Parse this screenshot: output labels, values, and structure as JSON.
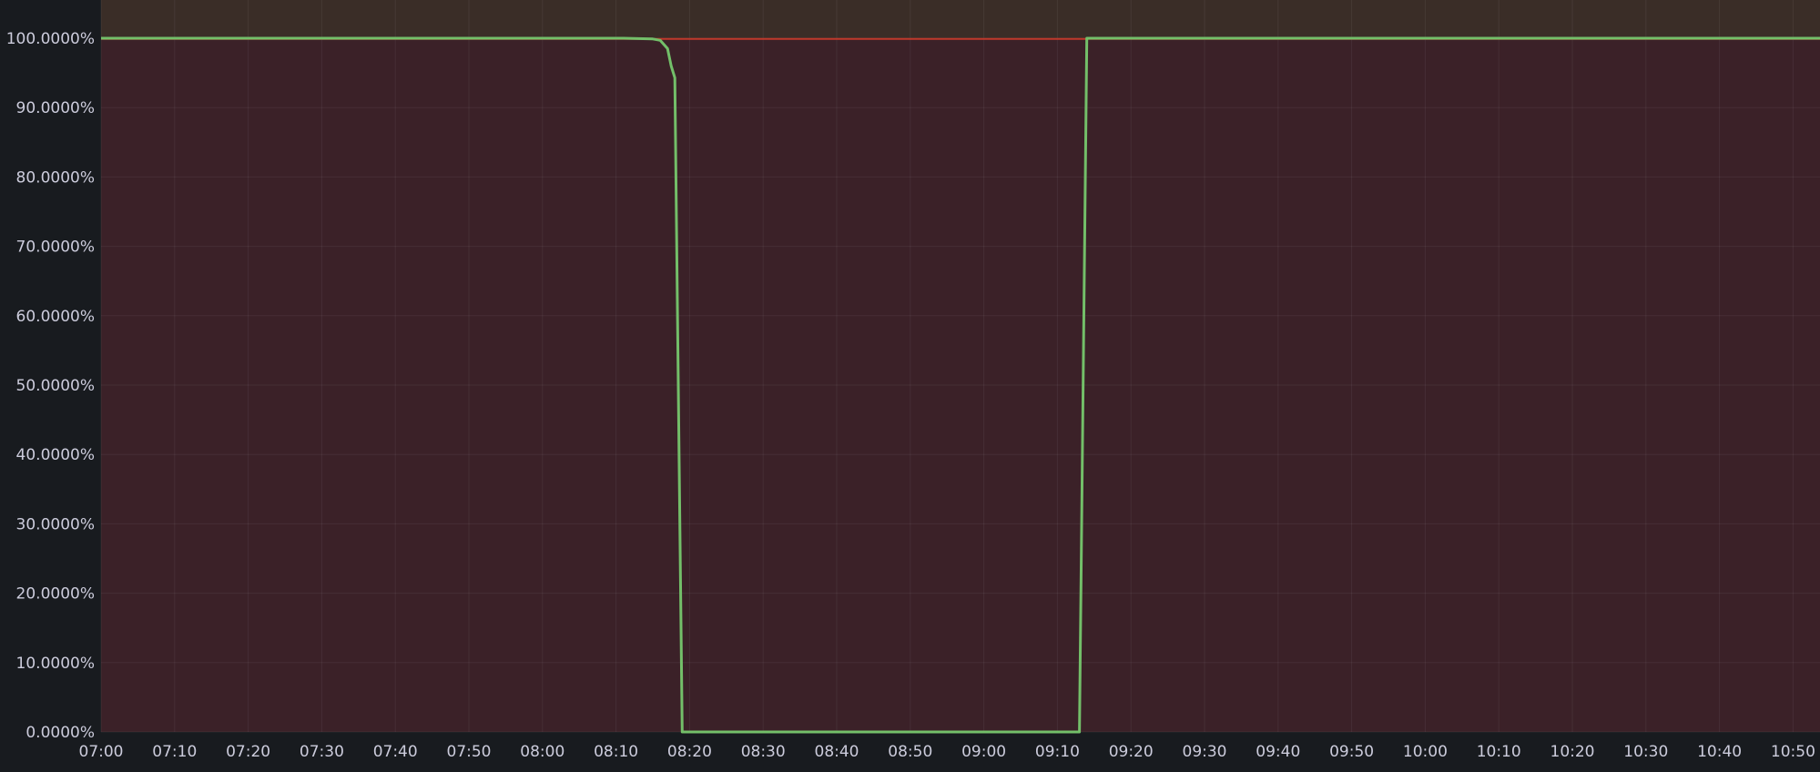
{
  "chart_data": {
    "type": "line",
    "title": "",
    "xlabel": "",
    "ylabel": "",
    "y_unit": "%",
    "ylim": [
      0,
      100
    ],
    "xlim": [
      "07:00",
      "10:55"
    ],
    "grid": true,
    "legend": "none",
    "x_ticks": [
      "07:00",
      "07:10",
      "07:20",
      "07:30",
      "07:40",
      "07:50",
      "08:00",
      "08:10",
      "08:20",
      "08:30",
      "08:40",
      "08:50",
      "09:00",
      "09:10",
      "09:20",
      "09:30",
      "09:40",
      "09:50",
      "10:00",
      "10:10",
      "10:20",
      "10:30",
      "10:40",
      "10:50"
    ],
    "y_ticks": [
      "0.0000%",
      "10.0000%",
      "20.0000%",
      "30.0000%",
      "40.0000%",
      "50.0000%",
      "60.0000%",
      "70.0000%",
      "80.0000%",
      "90.0000%",
      "100.0000%"
    ],
    "y_tick_values": [
      0,
      10,
      20,
      30,
      40,
      50,
      60,
      70,
      80,
      90,
      100
    ],
    "threshold": {
      "value": 99.9,
      "color": "#c0392b",
      "below_region_color": "#3b2128",
      "above_region_color": "#3a2d27"
    },
    "series": [
      {
        "color": "#73bf69",
        "points": [
          [
            "07:00",
            100
          ],
          [
            "08:11",
            100
          ],
          [
            "08:13",
            99.95
          ],
          [
            "08:15",
            99.9
          ],
          [
            "08:16",
            99.7
          ],
          [
            "08:17",
            98.5
          ],
          [
            "08:17:30",
            96
          ],
          [
            "08:18",
            94.3
          ],
          [
            "08:19",
            0
          ],
          [
            "09:13",
            0
          ],
          [
            "09:14",
            100
          ],
          [
            "10:55",
            100
          ]
        ]
      }
    ]
  }
}
